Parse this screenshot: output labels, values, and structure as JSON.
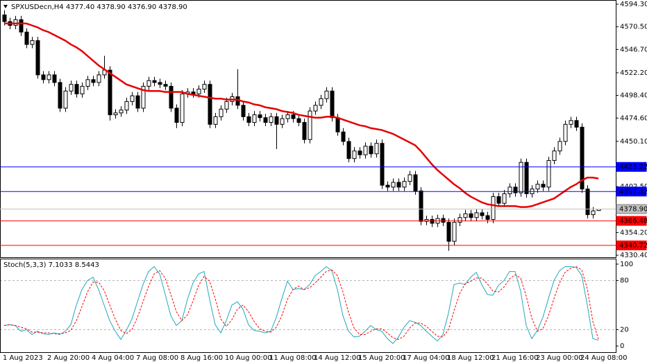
{
  "chart_data": [
    {
      "type": "candlestick",
      "title": "SPXUSDecn,H4  4377.40 4378.90 4376.90 4378.90",
      "x": [
        "1 Aug 2023",
        null,
        null,
        null,
        null,
        null,
        null,
        null,
        "2 Aug 20:00",
        null,
        null,
        null,
        null,
        null,
        null,
        null,
        "4 Aug 04:00",
        null,
        null,
        null,
        null,
        null,
        null,
        null,
        "7 Aug 08:00",
        null,
        null,
        null,
        null,
        null,
        null,
        null,
        "8 Aug 16:00",
        null,
        null,
        null,
        null,
        null,
        null,
        null,
        "10 Aug 00:00",
        null,
        null,
        null,
        null,
        null,
        null,
        null,
        "11 Aug 08:00",
        null,
        null,
        null,
        null,
        null,
        null,
        null,
        "14 Aug 12:00",
        null,
        null,
        null,
        null,
        null,
        null,
        null,
        "15 Aug 20:00",
        null,
        null,
        null,
        null,
        null,
        null,
        null,
        "17 Aug 04:00",
        null,
        null,
        null,
        null,
        null,
        null,
        null,
        "18 Aug 12:00",
        null,
        null,
        null,
        null,
        null,
        null,
        null,
        "21 Aug 16:00",
        null,
        null,
        null,
        null,
        null,
        null,
        null,
        "23 Aug 00:00",
        null,
        null,
        null,
        null,
        null,
        null,
        null,
        "24 Aug 08:00",
        null,
        null,
        null
      ],
      "open": [
        4583,
        4576,
        4572,
        4578,
        4565,
        4552,
        4556,
        4520,
        4515,
        4520,
        4512,
        4485,
        4503,
        4510,
        4500,
        4508,
        4515,
        4512,
        4520,
        4525,
        4478,
        4480,
        4483,
        4492,
        4498,
        4485,
        4508,
        4514,
        4512,
        4510,
        4508,
        4485,
        4470,
        4500,
        4502,
        4500,
        4505,
        4510,
        4468,
        4476,
        4484,
        4492,
        4497,
        4488,
        4476,
        4470,
        4478,
        4475,
        4470,
        4476,
        4468,
        4474,
        4478,
        4474,
        4470,
        4452,
        4482,
        4488,
        4495,
        4503,
        4475,
        4460,
        4450,
        4432,
        4440,
        4436,
        4445,
        4437,
        4448,
        4404,
        4402,
        4407,
        4402,
        4408,
        4415,
        4398,
        4366,
        4368,
        4364,
        4369,
        4365,
        4345,
        4365,
        4370,
        4374,
        4370,
        4375,
        4372,
        4368,
        4392,
        4385,
        4395,
        4402,
        4396,
        4428,
        4395,
        4400,
        4405,
        4402,
        4430,
        4440,
        4450,
        4468,
        4472,
        4465,
        4400,
        4373,
        4377.4
      ],
      "high": [
        4588,
        4580,
        4582,
        4582,
        4569,
        4560,
        4560,
        4524,
        4524,
        4524,
        4516,
        4507,
        4514,
        4514,
        4512,
        4519,
        4519,
        4524,
        4540,
        4529,
        4484,
        4487,
        4496,
        4502,
        4502,
        4512,
        4518,
        4518,
        4516,
        4514,
        4512,
        4489,
        4504,
        4506,
        4506,
        4509,
        4514,
        4514,
        4480,
        4488,
        4496,
        4501,
        4526,
        4492,
        4480,
        4482,
        4482,
        4479,
        4480,
        4480,
        4478,
        4482,
        4482,
        4478,
        4474,
        4486,
        4492,
        4499,
        4507,
        4507,
        4479,
        4464,
        4454,
        4444,
        4444,
        4449,
        4449,
        4452,
        4452,
        4408,
        4411,
        4411,
        4412,
        4419,
        4419,
        4402,
        4372,
        4372,
        4373,
        4373,
        4369,
        4369,
        4374,
        4378,
        4378,
        4379,
        4379,
        4376,
        4396,
        4396,
        4399,
        4406,
        4406,
        4432,
        4432,
        4404,
        4409,
        4409,
        4434,
        4444,
        4454,
        4472,
        4476,
        4476,
        4469,
        4404,
        4381,
        4378.9
      ],
      "low": [
        4572,
        4568,
        4568,
        4561,
        4548,
        4548,
        4516,
        4511,
        4511,
        4508,
        4481,
        4481,
        4499,
        4496,
        4496,
        4504,
        4508,
        4508,
        4516,
        4472,
        4474,
        4476,
        4479,
        4488,
        4481,
        4481,
        4504,
        4508,
        4506,
        4504,
        4481,
        4464,
        4466,
        4496,
        4496,
        4496,
        4501,
        4464,
        4464,
        4472,
        4480,
        4488,
        4484,
        4472,
        4466,
        4466,
        4471,
        4466,
        4466,
        4442,
        4464,
        4470,
        4470,
        4466,
        4448,
        4448,
        4478,
        4484,
        4491,
        4471,
        4456,
        4446,
        4428,
        4428,
        4432,
        4432,
        4433,
        4433,
        4400,
        4398,
        4398,
        4398,
        4398,
        4404,
        4394,
        4362,
        4362,
        4360,
        4360,
        4361,
        4335,
        4341,
        4361,
        4366,
        4366,
        4366,
        4368,
        4364,
        4364,
        4381,
        4381,
        4391,
        4392,
        4392,
        4391,
        4391,
        4396,
        4398,
        4398,
        4426,
        4436,
        4446,
        4464,
        4461,
        4396,
        4369,
        4369,
        4376.9
      ],
      "close": [
        4576,
        4572,
        4578,
        4565,
        4552,
        4556,
        4520,
        4515,
        4520,
        4512,
        4485,
        4503,
        4510,
        4500,
        4508,
        4515,
        4512,
        4520,
        4525,
        4478,
        4480,
        4483,
        4492,
        4498,
        4485,
        4508,
        4514,
        4512,
        4510,
        4508,
        4485,
        4470,
        4500,
        4502,
        4500,
        4505,
        4510,
        4468,
        4476,
        4484,
        4492,
        4497,
        4488,
        4476,
        4470,
        4478,
        4475,
        4470,
        4476,
        4468,
        4474,
        4478,
        4474,
        4470,
        4452,
        4482,
        4488,
        4495,
        4503,
        4475,
        4460,
        4450,
        4432,
        4440,
        4436,
        4445,
        4437,
        4448,
        4404,
        4402,
        4407,
        4402,
        4408,
        4415,
        4398,
        4366,
        4368,
        4364,
        4369,
        4365,
        4345,
        4365,
        4370,
        4374,
        4370,
        4375,
        4372,
        4368,
        4392,
        4385,
        4395,
        4402,
        4396,
        4428,
        4395,
        4400,
        4405,
        4402,
        4430,
        4440,
        4450,
        4468,
        4472,
        4465,
        4400,
        4373,
        4377,
        4378.9
      ],
      "up_color": "#ffffff",
      "down_color": "#000000",
      "ma": {
        "color": "#e60000",
        "values": [
          4574,
          4574,
          4574,
          4574,
          4574,
          4572,
          4570,
          4567,
          4565,
          4562,
          4559,
          4556,
          4552,
          4549,
          4545,
          4540,
          4535,
          4530,
          4526,
          4522,
          4518,
          4514,
          4510,
          4508,
          4506,
          4504,
          4503,
          4503,
          4503,
          4502,
          4502,
          4502,
          4502,
          4500,
          4499,
          4498,
          4497,
          4496,
          4495,
          4495,
          4494,
          4494,
          4494,
          4492,
          4491,
          4489,
          4488,
          4486,
          4485,
          4484,
          4482,
          4481,
          4480,
          4478,
          4477,
          4476,
          4475,
          4475,
          4476,
          4476,
          4475,
          4473,
          4471,
          4469,
          4467,
          4466,
          4464,
          4463,
          4462,
          4460,
          4458,
          4455,
          4452,
          4449,
          4446,
          4440,
          4433,
          4426,
          4420,
          4415,
          4410,
          4405,
          4401,
          4396,
          4392,
          4389,
          4386,
          4384,
          4383,
          4382,
          4382,
          4382,
          4382,
          4381,
          4381,
          4382,
          4384,
          4386,
          4388,
          4390,
          4394,
          4398,
          4402,
          4405,
          4409,
          4412,
          4412,
          4411
        ]
      },
      "hlines": [
        {
          "value": 4423.22,
          "color": "#0000ff",
          "text_color": "#ffffff"
        },
        {
          "value": 4397.32,
          "color": "#0000ff",
          "text_color": "#ffffff"
        },
        {
          "value": 4378.9,
          "label": "4378.90",
          "color": "#c0c0c0",
          "text_color": "#000000"
        },
        {
          "value": 4366.48,
          "color": "#ff0000",
          "text_color": "#ffffff"
        },
        {
          "value": 4340.72,
          "color": "#ff0000",
          "text_color": "#ffffff"
        }
      ],
      "ylim": [
        4329,
        4598.7
      ],
      "yticks": [
        {
          "value": 4594.3,
          "label": "4594.30"
        },
        {
          "value": 4570.5,
          "label": "4570.50"
        },
        {
          "value": 4546.7,
          "label": "4546.70"
        },
        {
          "value": 4522.2,
          "label": "4522.20"
        },
        {
          "value": 4498.4,
          "label": "4498.40"
        },
        {
          "value": 4474.6,
          "label": "4474.60"
        },
        {
          "value": 4450.1,
          "label": "4450.10"
        },
        {
          "value": 4402.5,
          "label": "4402.50"
        },
        {
          "value": 4354.2,
          "label": "4354.20"
        },
        {
          "value": 4330.4,
          "label": "4330.40"
        }
      ]
    },
    {
      "type": "line",
      "title": "Stoch(5,3,3) 7.1033 8.5443",
      "series": [
        {
          "color": "#20a8b8",
          "values": [
            25,
            26,
            25,
            18,
            20,
            14,
            18,
            15,
            14,
            16,
            14,
            18,
            26,
            50,
            69,
            80,
            84,
            69,
            50,
            31,
            18,
            8,
            19,
            33,
            54,
            75,
            91,
            97,
            88,
            63,
            37,
            25,
            31,
            57,
            77,
            88,
            91,
            57,
            26,
            16,
            31,
            50,
            54,
            45,
            26,
            19,
            18,
            16,
            18,
            35,
            58,
            79,
            69,
            70,
            69,
            75,
            86,
            91,
            97,
            92,
            69,
            37,
            18,
            11,
            12,
            18,
            25,
            20,
            18,
            9,
            3,
            11,
            23,
            31,
            29,
            25,
            18,
            12,
            6,
            14,
            40,
            75,
            77,
            75,
            84,
            90,
            75,
            63,
            62,
            74,
            80,
            91,
            91,
            67,
            25,
            9,
            19,
            35,
            58,
            80,
            92,
            97,
            97,
            96,
            86,
            50,
            9,
            7.1033
          ]
        },
        {
          "color": "#ff0000",
          "dash": true,
          "values": [
            25,
            26,
            25,
            23,
            21,
            17,
            17,
            16,
            16,
            15,
            15,
            16,
            19,
            31,
            48,
            66,
            78,
            78,
            68,
            50,
            33,
            19,
            15,
            20,
            35,
            54,
            73,
            88,
            92,
            83,
            63,
            42,
            31,
            38,
            55,
            74,
            85,
            79,
            58,
            33,
            24,
            32,
            45,
            50,
            42,
            30,
            21,
            18,
            17,
            23,
            37,
            57,
            69,
            73,
            69,
            71,
            77,
            84,
            91,
            93,
            86,
            66,
            41,
            22,
            14,
            14,
            18,
            21,
            21,
            16,
            10,
            8,
            12,
            22,
            28,
            28,
            24,
            18,
            12,
            11,
            20,
            43,
            64,
            76,
            79,
            83,
            83,
            76,
            67,
            66,
            72,
            82,
            87,
            83,
            61,
            34,
            18,
            21,
            37,
            58,
            77,
            90,
            95,
            97,
            93,
            70,
            30,
            8.5443
          ]
        }
      ],
      "levels": [
        20,
        80
      ],
      "ylim": [
        -7.6,
        105.9
      ],
      "yticks": [
        0,
        20,
        80,
        100
      ]
    }
  ]
}
